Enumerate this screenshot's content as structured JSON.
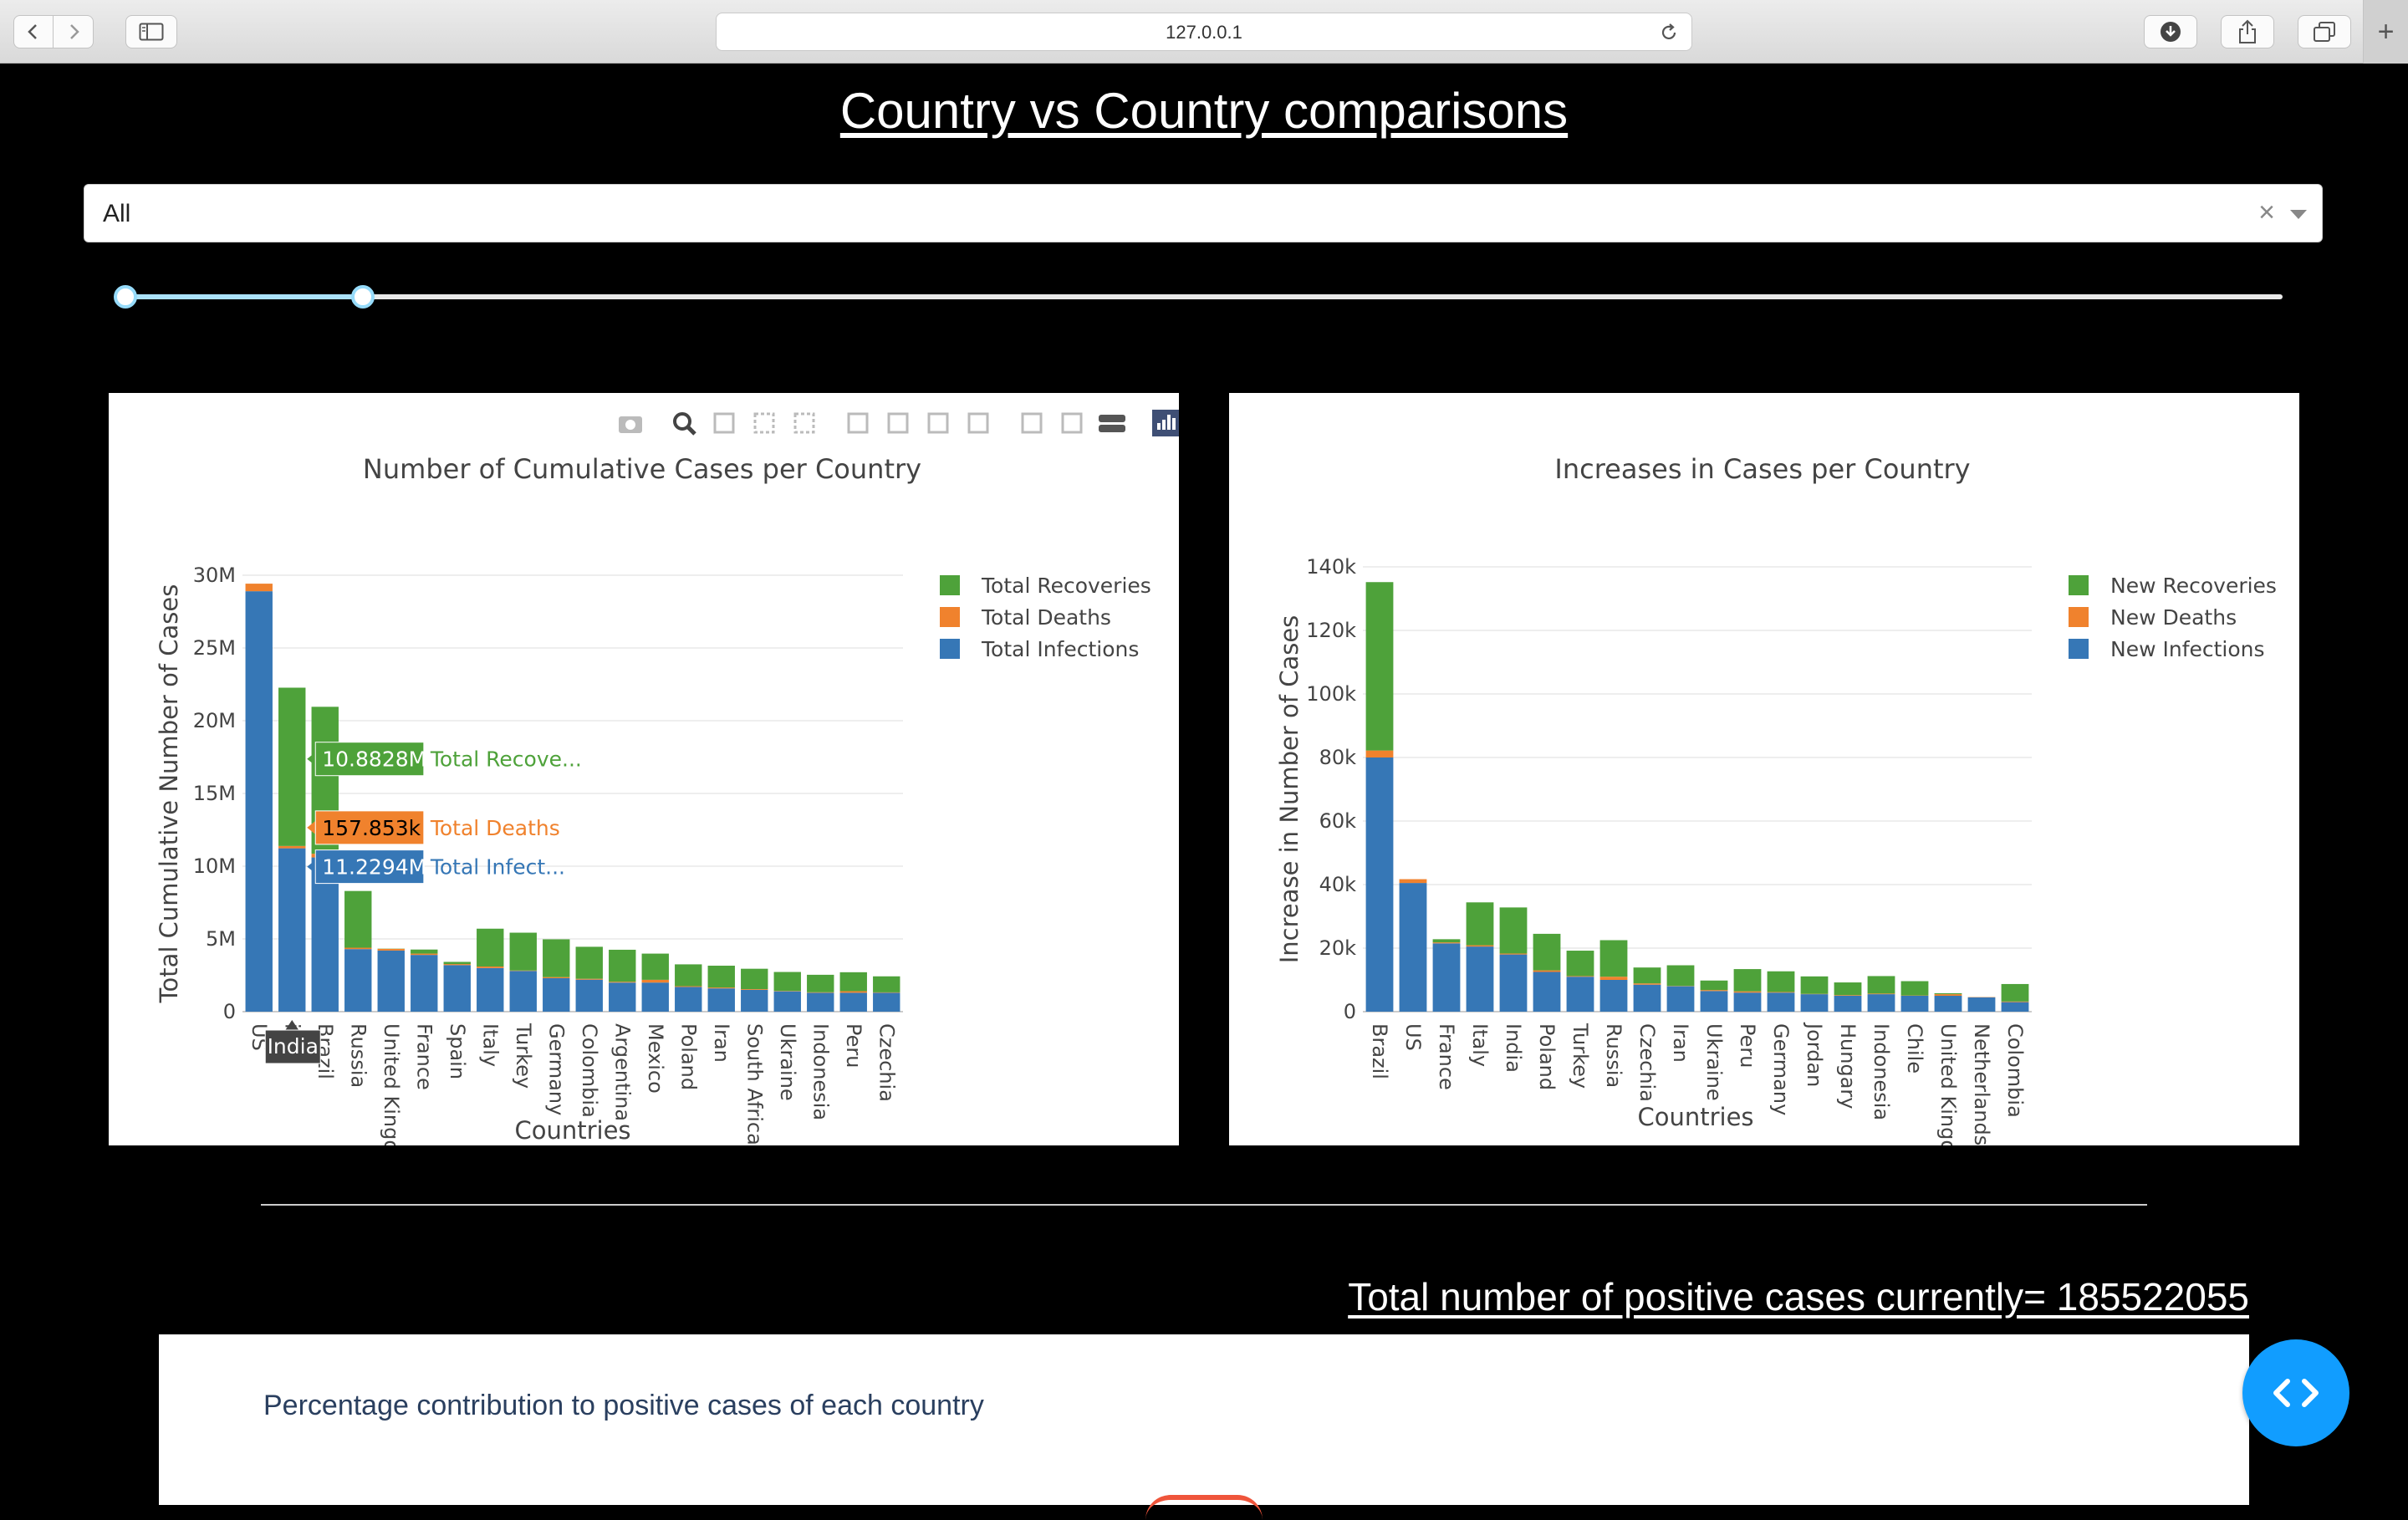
{
  "browser": {
    "url": "127.0.0.1"
  },
  "page": {
    "title": "Country vs Country comparisons",
    "total_text": "Total number of positive cases currently= 185522055",
    "pie_title": "Percentage contribution to positive cases of each country"
  },
  "dropdown": {
    "value": "All",
    "clear_label": "×"
  },
  "slider": {
    "low_fraction": 0.0,
    "high_fraction": 0.11
  },
  "colors": {
    "recoveries": "#4ea23a",
    "deaths": "#f0822d",
    "infections": "#3677b6",
    "fab": "#119dff"
  },
  "chart_data": [
    {
      "type": "bar",
      "stacked": true,
      "title": "Number of Cumulative Cases per Country",
      "xlabel": "Countries",
      "ylabel": "Total Cumulative Number of Cases",
      "ylim": [
        0,
        30000000
      ],
      "yticks": [
        0,
        5000000,
        10000000,
        15000000,
        20000000,
        25000000,
        30000000
      ],
      "ytick_labels": [
        "0",
        "5M",
        "10M",
        "15M",
        "20M",
        "25M",
        "30M"
      ],
      "categories": [
        "US",
        "India",
        "Brazil",
        "Russia",
        "United Kingdom",
        "France",
        "Spain",
        "Italy",
        "Turkey",
        "Germany",
        "Colombia",
        "Argentina",
        "Mexico",
        "Poland",
        "Iran",
        "South Africa",
        "Ukraine",
        "Indonesia",
        "Peru",
        "Czechia"
      ],
      "category_labels": [
        "US",
        "ia",
        "Brazil",
        "Russia",
        "United Kingo",
        "France",
        "Spain",
        "Italy",
        "Turkey",
        "Germany",
        "Colombia",
        "Argentina",
        "Mexico",
        "Poland",
        "Iran",
        "South Africa",
        "Ukraine",
        "Indonesia",
        "Peru",
        "Czechia"
      ],
      "series": [
        {
          "name": "Total Infections",
          "values": [
            28900000,
            11229400,
            10600000,
            4300000,
            4200000,
            3900000,
            3200000,
            3000000,
            2800000,
            2300000,
            2200000,
            2000000,
            2000000,
            1700000,
            1600000,
            1500000,
            1400000,
            1300000,
            1300000,
            1300000
          ]
        },
        {
          "name": "Total Deaths",
          "values": [
            520000,
            157853,
            256000,
            95000,
            120000,
            90000,
            72000,
            104000,
            29000,
            75000,
            60000,
            56000,
            190000,
            52000,
            60000,
            50000,
            28000,
            35000,
            110000,
            28000
          ]
        },
        {
          "name": "Total Recoveries",
          "values": [
            0,
            10882800,
            10100000,
            3900000,
            15000,
            280000,
            150000,
            2600000,
            2600000,
            2600000,
            2200000,
            2200000,
            1800000,
            1500000,
            1500000,
            1400000,
            1300000,
            1200000,
            1300000,
            1100000
          ]
        }
      ],
      "legend": [
        "Total Recoveries",
        "Total Deaths",
        "Total Infections"
      ],
      "hover": {
        "category_label": "India",
        "items": [
          {
            "value": "10.8828M",
            "label": "Total Recove...",
            "series": "Total Recoveries"
          },
          {
            "value": "157.853k",
            "label": "Total Deaths",
            "series": "Total Deaths"
          },
          {
            "value": "11.2294M",
            "label": "Total Infect...",
            "series": "Total Infections"
          }
        ]
      }
    },
    {
      "type": "bar",
      "stacked": true,
      "title": "Increases in Cases per Country",
      "xlabel": "Countries",
      "ylabel": "Increase in Number of Cases",
      "ylim": [
        0,
        140000
      ],
      "yticks": [
        0,
        20000,
        40000,
        60000,
        80000,
        100000,
        120000,
        140000
      ],
      "ytick_labels": [
        "0",
        "20k",
        "40k",
        "60k",
        "80k",
        "100k",
        "120k",
        "140k"
      ],
      "categories": [
        "Brazil",
        "US",
        "France",
        "Italy",
        "India",
        "Poland",
        "Turkey",
        "Russia",
        "Czechia",
        "Iran",
        "Ukraine",
        "Peru",
        "Germany",
        "Jordan",
        "Hungary",
        "Indonesia",
        "Chile",
        "United Kingdom",
        "Netherlands",
        "Colombia"
      ],
      "category_labels": [
        "Brazil",
        "US",
        "France",
        "Italy",
        "India",
        "Poland",
        "Turkey",
        "Russia",
        "Czechia",
        "Iran",
        "Ukraine",
        "Peru",
        "Germany",
        "Jordan",
        "Hungary",
        "Indonesia",
        "Chile",
        "United Kingo",
        "Netherlands",
        "Colombia"
      ],
      "series": [
        {
          "name": "New Infections",
          "values": [
            80000,
            40500,
            21500,
            20500,
            18000,
            12500,
            11000,
            10000,
            8500,
            8000,
            6500,
            6000,
            6000,
            5500,
            5000,
            5500,
            5000,
            5000,
            4500,
            3000
          ]
        },
        {
          "name": "New Deaths",
          "values": [
            2200,
            1200,
            300,
            400,
            300,
            500,
            200,
            1000,
            400,
            100,
            300,
            400,
            200,
            100,
            200,
            200,
            100,
            500,
            100,
            200
          ]
        },
        {
          "name": "New Recoveries",
          "values": [
            53000,
            0,
            1000,
            13500,
            14500,
            11500,
            8000,
            11500,
            5000,
            6500,
            3000,
            7000,
            6500,
            5500,
            4000,
            5500,
            4500,
            300,
            0,
            5500
          ]
        }
      ],
      "legend": [
        "New Recoveries",
        "New Deaths",
        "New Infections"
      ]
    }
  ]
}
